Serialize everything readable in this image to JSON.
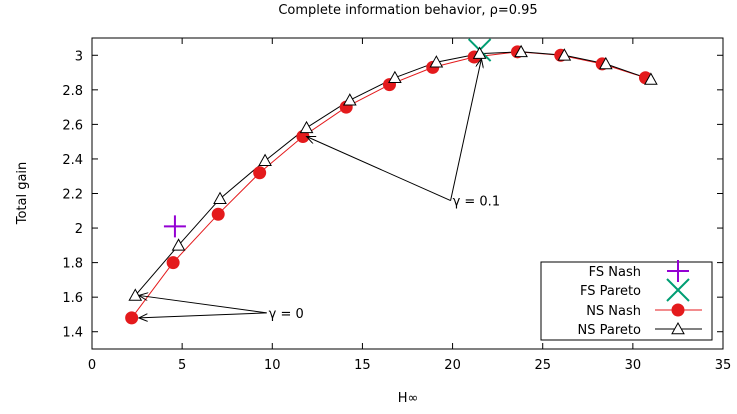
{
  "chart_data": {
    "type": "line",
    "title": "Complete information behavior, ρ=0.95",
    "xlabel": "H∞",
    "ylabel": "Total gain",
    "xlim": [
      0,
      35
    ],
    "ylim": [
      1.3,
      3.1
    ],
    "x_ticks": [
      "0",
      "5",
      "10",
      "15",
      "20",
      "25",
      "30",
      "35"
    ],
    "y_ticks": [
      "1.4",
      "1.6",
      "1.8",
      "2",
      "2.2",
      "2.4",
      "2.6",
      "2.8",
      "3"
    ],
    "grid": false,
    "legend_position": "bottom-right",
    "series": [
      {
        "name": "FS Nash",
        "marker": "plus",
        "color": "#9400D3",
        "points": [
          [
            4.6,
            2.01
          ]
        ]
      },
      {
        "name": "FS Pareto",
        "marker": "cross",
        "color": "#009E73",
        "points": [
          [
            21.5,
            3.03
          ]
        ]
      },
      {
        "name": "NS Nash",
        "marker": "circle",
        "color": "#E41A1C",
        "points": [
          [
            2.2,
            1.48
          ],
          [
            4.5,
            1.8
          ],
          [
            7.0,
            2.08
          ],
          [
            9.3,
            2.32
          ],
          [
            11.7,
            2.53
          ],
          [
            14.1,
            2.7
          ],
          [
            16.5,
            2.83
          ],
          [
            18.9,
            2.93
          ],
          [
            21.2,
            2.99
          ],
          [
            23.6,
            3.02
          ],
          [
            26.0,
            3.0
          ],
          [
            28.3,
            2.95
          ],
          [
            30.7,
            2.87
          ]
        ]
      },
      {
        "name": "NS Pareto",
        "marker": "triangle",
        "color": "#000000",
        "points": [
          [
            2.4,
            1.61
          ],
          [
            4.8,
            1.9
          ],
          [
            7.1,
            2.17
          ],
          [
            9.6,
            2.39
          ],
          [
            11.9,
            2.58
          ],
          [
            14.3,
            2.74
          ],
          [
            16.8,
            2.87
          ],
          [
            19.1,
            2.96
          ],
          [
            21.5,
            3.01
          ],
          [
            23.8,
            3.02
          ],
          [
            26.2,
            3.0
          ],
          [
            28.5,
            2.95
          ],
          [
            31.0,
            2.86
          ]
        ]
      }
    ],
    "annotations": [
      {
        "text": "γ = 0",
        "at": [
          9.8,
          1.48
        ],
        "arrows_to": [
          [
            2.6,
            1.61
          ],
          [
            2.6,
            1.48
          ]
        ]
      },
      {
        "text": "γ = 0.1",
        "at": [
          20.0,
          2.13
        ],
        "arrows_to": [
          [
            11.9,
            2.53
          ],
          [
            21.6,
            2.98
          ]
        ]
      }
    ]
  }
}
